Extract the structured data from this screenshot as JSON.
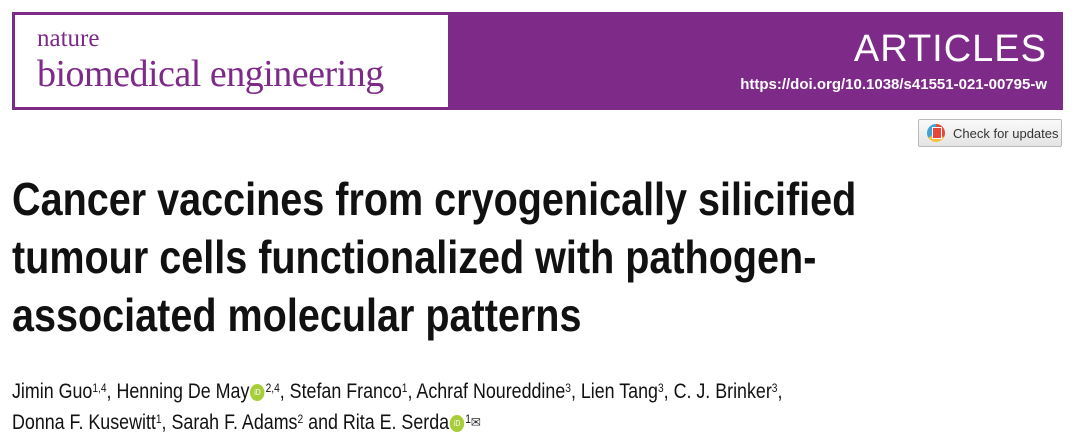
{
  "header": {
    "journal_line1": "nature",
    "journal_line2": "biomedical engineering",
    "section": "ARTICLES",
    "doi": "https://doi.org/10.1038/s41551-021-00795-w",
    "brand_color": "#7d2a88"
  },
  "check_updates": {
    "label": "Check for updates",
    "icon": "crossmark-icon"
  },
  "title_lines": [
    "Cancer vaccines from cryogenically silicified",
    "tumour cells functionalized with pathogen-",
    "associated molecular patterns"
  ],
  "authors": [
    {
      "name": "Jimin Guo",
      "aff": "1,4",
      "sep": ", "
    },
    {
      "name": "Henning De May",
      "aff": "2,4",
      "orcid": true,
      "sep": ", "
    },
    {
      "name": "Stefan Franco",
      "aff": "1",
      "sep": ", "
    },
    {
      "name": "Achraf Noureddine",
      "aff": "3",
      "sep": ", "
    },
    {
      "name": "Lien Tang",
      "aff": "3",
      "sep": ", "
    },
    {
      "name": "C. J. Brinker",
      "aff": "3",
      "sep": ","
    },
    {
      "name": "Donna F. Kusewitt",
      "aff": "1",
      "sep": ", "
    },
    {
      "name": "Sarah F. Adams",
      "aff": "2",
      "sep": " and "
    },
    {
      "name": "Rita E. Serda",
      "aff": "1",
      "orcid": true,
      "sep": "",
      "mail": "✉"
    }
  ]
}
